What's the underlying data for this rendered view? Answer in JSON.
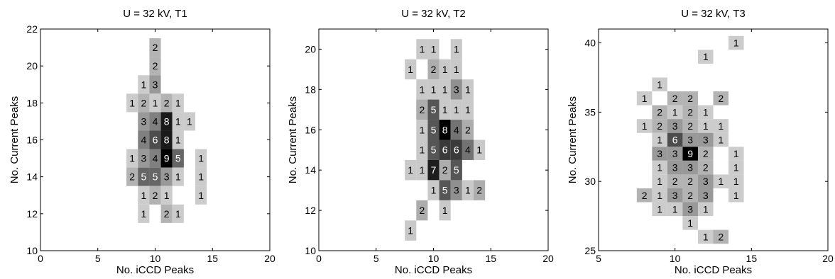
{
  "chart_data": [
    {
      "type": "heatmap",
      "title": "U = 32 kV, T1",
      "xlabel": "No. iCCD Peaks",
      "ylabel": "No. Current Peaks",
      "xlim": [
        0,
        20
      ],
      "ylim": [
        10,
        22
      ],
      "xticks": [
        0,
        5,
        10,
        15,
        20
      ],
      "yticks": [
        10,
        12,
        14,
        16,
        18,
        20,
        22
      ],
      "max_count": 9,
      "cells": [
        {
          "x": 10,
          "y": 21,
          "count": 2
        },
        {
          "x": 10,
          "y": 20,
          "count": 2
        },
        {
          "x": 9,
          "y": 19,
          "count": 1
        },
        {
          "x": 10,
          "y": 19,
          "count": 3
        },
        {
          "x": 8,
          "y": 18,
          "count": 1
        },
        {
          "x": 9,
          "y": 18,
          "count": 2
        },
        {
          "x": 10,
          "y": 18,
          "count": 1
        },
        {
          "x": 11,
          "y": 18,
          "count": 2
        },
        {
          "x": 12,
          "y": 18,
          "count": 1
        },
        {
          "x": 9,
          "y": 17,
          "count": 3
        },
        {
          "x": 10,
          "y": 17,
          "count": 4
        },
        {
          "x": 11,
          "y": 17,
          "count": 8
        },
        {
          "x": 12,
          "y": 17,
          "count": 1
        },
        {
          "x": 13,
          "y": 17,
          "count": 1
        },
        {
          "x": 9,
          "y": 16,
          "count": 4
        },
        {
          "x": 10,
          "y": 16,
          "count": 6
        },
        {
          "x": 11,
          "y": 16,
          "count": 8
        },
        {
          "x": 12,
          "y": 16,
          "count": 1
        },
        {
          "x": 8,
          "y": 15,
          "count": 1
        },
        {
          "x": 9,
          "y": 15,
          "count": 3
        },
        {
          "x": 10,
          "y": 15,
          "count": 4
        },
        {
          "x": 11,
          "y": 15,
          "count": 9
        },
        {
          "x": 12,
          "y": 15,
          "count": 5
        },
        {
          "x": 14,
          "y": 15,
          "count": 1
        },
        {
          "x": 8,
          "y": 14,
          "count": 2
        },
        {
          "x": 9,
          "y": 14,
          "count": 5
        },
        {
          "x": 10,
          "y": 14,
          "count": 5
        },
        {
          "x": 11,
          "y": 14,
          "count": 3
        },
        {
          "x": 12,
          "y": 14,
          "count": 1
        },
        {
          "x": 14,
          "y": 14,
          "count": 1
        },
        {
          "x": 9,
          "y": 13,
          "count": 1
        },
        {
          "x": 10,
          "y": 13,
          "count": 2
        },
        {
          "x": 11,
          "y": 13,
          "count": 1
        },
        {
          "x": 14,
          "y": 13,
          "count": 1
        },
        {
          "x": 9,
          "y": 12,
          "count": 1
        },
        {
          "x": 11,
          "y": 12,
          "count": 2
        },
        {
          "x": 12,
          "y": 12,
          "count": 1
        }
      ]
    },
    {
      "type": "heatmap",
      "title": "U = 32 kV, T2",
      "xlabel": "No. iCCD Peaks",
      "ylabel": "No. Current Peaks",
      "xlim": [
        0,
        20
      ],
      "ylim": [
        10,
        21
      ],
      "xticks": [
        0,
        5,
        10,
        15,
        20
      ],
      "yticks": [
        10,
        12,
        14,
        16,
        18,
        20
      ],
      "max_count": 8,
      "cells": [
        {
          "x": 9,
          "y": 20,
          "count": 1
        },
        {
          "x": 10,
          "y": 20,
          "count": 1
        },
        {
          "x": 12,
          "y": 20,
          "count": 1
        },
        {
          "x": 8,
          "y": 19,
          "count": 1
        },
        {
          "x": 10,
          "y": 19,
          "count": 2
        },
        {
          "x": 11,
          "y": 19,
          "count": 1
        },
        {
          "x": 12,
          "y": 19,
          "count": 1
        },
        {
          "x": 9,
          "y": 18,
          "count": 1
        },
        {
          "x": 10,
          "y": 18,
          "count": 1
        },
        {
          "x": 11,
          "y": 18,
          "count": 1
        },
        {
          "x": 12,
          "y": 18,
          "count": 3
        },
        {
          "x": 13,
          "y": 18,
          "count": 1
        },
        {
          "x": 9,
          "y": 17,
          "count": 2
        },
        {
          "x": 10,
          "y": 17,
          "count": 5
        },
        {
          "x": 11,
          "y": 17,
          "count": 1
        },
        {
          "x": 12,
          "y": 17,
          "count": 1
        },
        {
          "x": 13,
          "y": 17,
          "count": 1
        },
        {
          "x": 9,
          "y": 16,
          "count": 1
        },
        {
          "x": 10,
          "y": 16,
          "count": 5
        },
        {
          "x": 11,
          "y": 16,
          "count": 8
        },
        {
          "x": 12,
          "y": 16,
          "count": 4
        },
        {
          "x": 13,
          "y": 16,
          "count": 2
        },
        {
          "x": 9,
          "y": 15,
          "count": 1
        },
        {
          "x": 10,
          "y": 15,
          "count": 5
        },
        {
          "x": 11,
          "y": 15,
          "count": 6
        },
        {
          "x": 12,
          "y": 15,
          "count": 6
        },
        {
          "x": 13,
          "y": 15,
          "count": 4
        },
        {
          "x": 14,
          "y": 15,
          "count": 1
        },
        {
          "x": 8,
          "y": 14,
          "count": 1
        },
        {
          "x": 9,
          "y": 14,
          "count": 1
        },
        {
          "x": 10,
          "y": 14,
          "count": 7
        },
        {
          "x": 11,
          "y": 14,
          "count": 2
        },
        {
          "x": 12,
          "y": 14,
          "count": 5
        },
        {
          "x": 10,
          "y": 13,
          "count": 1
        },
        {
          "x": 11,
          "y": 13,
          "count": 5
        },
        {
          "x": 12,
          "y": 13,
          "count": 3
        },
        {
          "x": 13,
          "y": 13,
          "count": 1
        },
        {
          "x": 14,
          "y": 13,
          "count": 2
        },
        {
          "x": 9,
          "y": 12,
          "count": 2
        },
        {
          "x": 11,
          "y": 12,
          "count": 1
        },
        {
          "x": 8,
          "y": 11,
          "count": 1
        }
      ]
    },
    {
      "type": "heatmap",
      "title": "U = 32 kV, T3",
      "xlabel": "No. iCCD Peaks",
      "ylabel": "No. Current Peaks",
      "xlim": [
        5,
        20
      ],
      "ylim": [
        25,
        41
      ],
      "xticks": [
        5,
        10,
        15,
        20
      ],
      "yticks": [
        25,
        30,
        35,
        40
      ],
      "max_count": 9,
      "cells": [
        {
          "x": 14,
          "y": 40,
          "count": 1
        },
        {
          "x": 12,
          "y": 39,
          "count": 1
        },
        {
          "x": 9,
          "y": 37,
          "count": 1
        },
        {
          "x": 8,
          "y": 36,
          "count": 1
        },
        {
          "x": 10,
          "y": 36,
          "count": 2
        },
        {
          "x": 11,
          "y": 36,
          "count": 2
        },
        {
          "x": 13,
          "y": 36,
          "count": 2
        },
        {
          "x": 9,
          "y": 35,
          "count": 2
        },
        {
          "x": 10,
          "y": 35,
          "count": 1
        },
        {
          "x": 11,
          "y": 35,
          "count": 2
        },
        {
          "x": 12,
          "y": 35,
          "count": 1
        },
        {
          "x": 8,
          "y": 34,
          "count": 1
        },
        {
          "x": 9,
          "y": 34,
          "count": 2
        },
        {
          "x": 10,
          "y": 34,
          "count": 3
        },
        {
          "x": 11,
          "y": 34,
          "count": 2
        },
        {
          "x": 12,
          "y": 34,
          "count": 1
        },
        {
          "x": 13,
          "y": 34,
          "count": 1
        },
        {
          "x": 9,
          "y": 33,
          "count": 1
        },
        {
          "x": 10,
          "y": 33,
          "count": 6
        },
        {
          "x": 11,
          "y": 33,
          "count": 3
        },
        {
          "x": 12,
          "y": 33,
          "count": 3
        },
        {
          "x": 13,
          "y": 33,
          "count": 1
        },
        {
          "x": 9,
          "y": 32,
          "count": 3
        },
        {
          "x": 10,
          "y": 32,
          "count": 3
        },
        {
          "x": 11,
          "y": 32,
          "count": 9
        },
        {
          "x": 12,
          "y": 32,
          "count": 2
        },
        {
          "x": 14,
          "y": 32,
          "count": 1
        },
        {
          "x": 9,
          "y": 31,
          "count": 1
        },
        {
          "x": 10,
          "y": 31,
          "count": 3
        },
        {
          "x": 11,
          "y": 31,
          "count": 3
        },
        {
          "x": 12,
          "y": 31,
          "count": 2
        },
        {
          "x": 14,
          "y": 31,
          "count": 1
        },
        {
          "x": 9,
          "y": 30,
          "count": 1
        },
        {
          "x": 10,
          "y": 30,
          "count": 2
        },
        {
          "x": 11,
          "y": 30,
          "count": 2
        },
        {
          "x": 12,
          "y": 30,
          "count": 3
        },
        {
          "x": 13,
          "y": 30,
          "count": 1
        },
        {
          "x": 14,
          "y": 30,
          "count": 1
        },
        {
          "x": 8,
          "y": 29,
          "count": 2
        },
        {
          "x": 9,
          "y": 29,
          "count": 1
        },
        {
          "x": 10,
          "y": 29,
          "count": 3
        },
        {
          "x": 11,
          "y": 29,
          "count": 2
        },
        {
          "x": 12,
          "y": 29,
          "count": 3
        },
        {
          "x": 14,
          "y": 29,
          "count": 1
        },
        {
          "x": 9,
          "y": 28,
          "count": 1
        },
        {
          "x": 10,
          "y": 28,
          "count": 1
        },
        {
          "x": 11,
          "y": 28,
          "count": 3
        },
        {
          "x": 12,
          "y": 28,
          "count": 1
        },
        {
          "x": 11,
          "y": 27,
          "count": 1
        },
        {
          "x": 12,
          "y": 26,
          "count": 1
        },
        {
          "x": 13,
          "y": 26,
          "count": 2
        }
      ]
    }
  ]
}
